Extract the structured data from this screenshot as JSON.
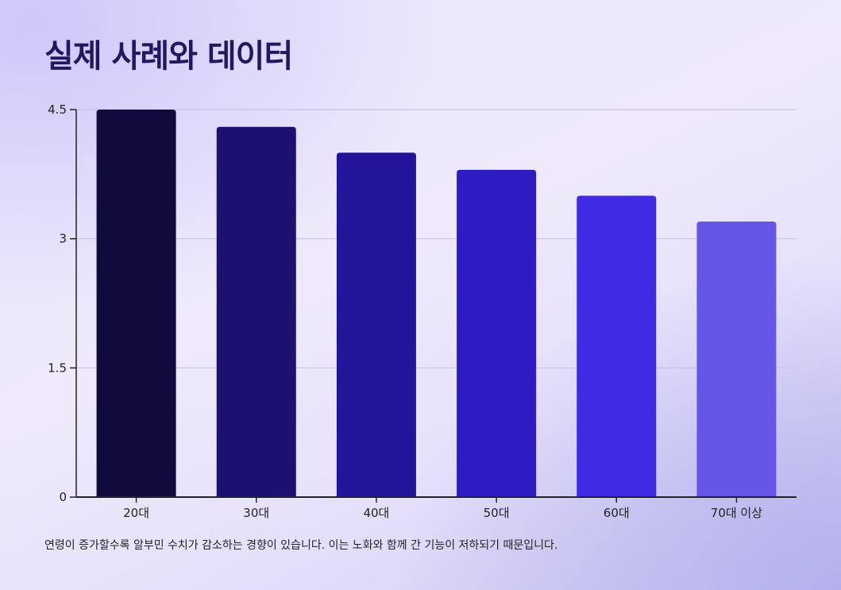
{
  "title": "실제 사례와 데이터",
  "caption": "연령이 증가할수록 알부민 수치가 감소하는 경향이 있습니다. 이는 노화와 함께 간 기능이 저하되기 때문입니다.",
  "chart_data": {
    "type": "bar",
    "categories": [
      "20대",
      "30대",
      "40대",
      "50대",
      "60대",
      "70대 이상"
    ],
    "values": [
      4.5,
      4.3,
      4.0,
      3.8,
      3.5,
      3.2
    ],
    "colors": [
      "#110a3d",
      "#1c1070",
      "#22159a",
      "#2d1cc4",
      "#3f2ae3",
      "#6656e8"
    ],
    "xlabel": "",
    "ylabel": "",
    "ylim": [
      0,
      4.5
    ],
    "yticks": [
      0,
      1.5,
      3,
      4.5
    ],
    "ytick_labels": [
      "0",
      "1.5",
      "3",
      "4.5"
    ],
    "grid": true,
    "legend": "none"
  }
}
